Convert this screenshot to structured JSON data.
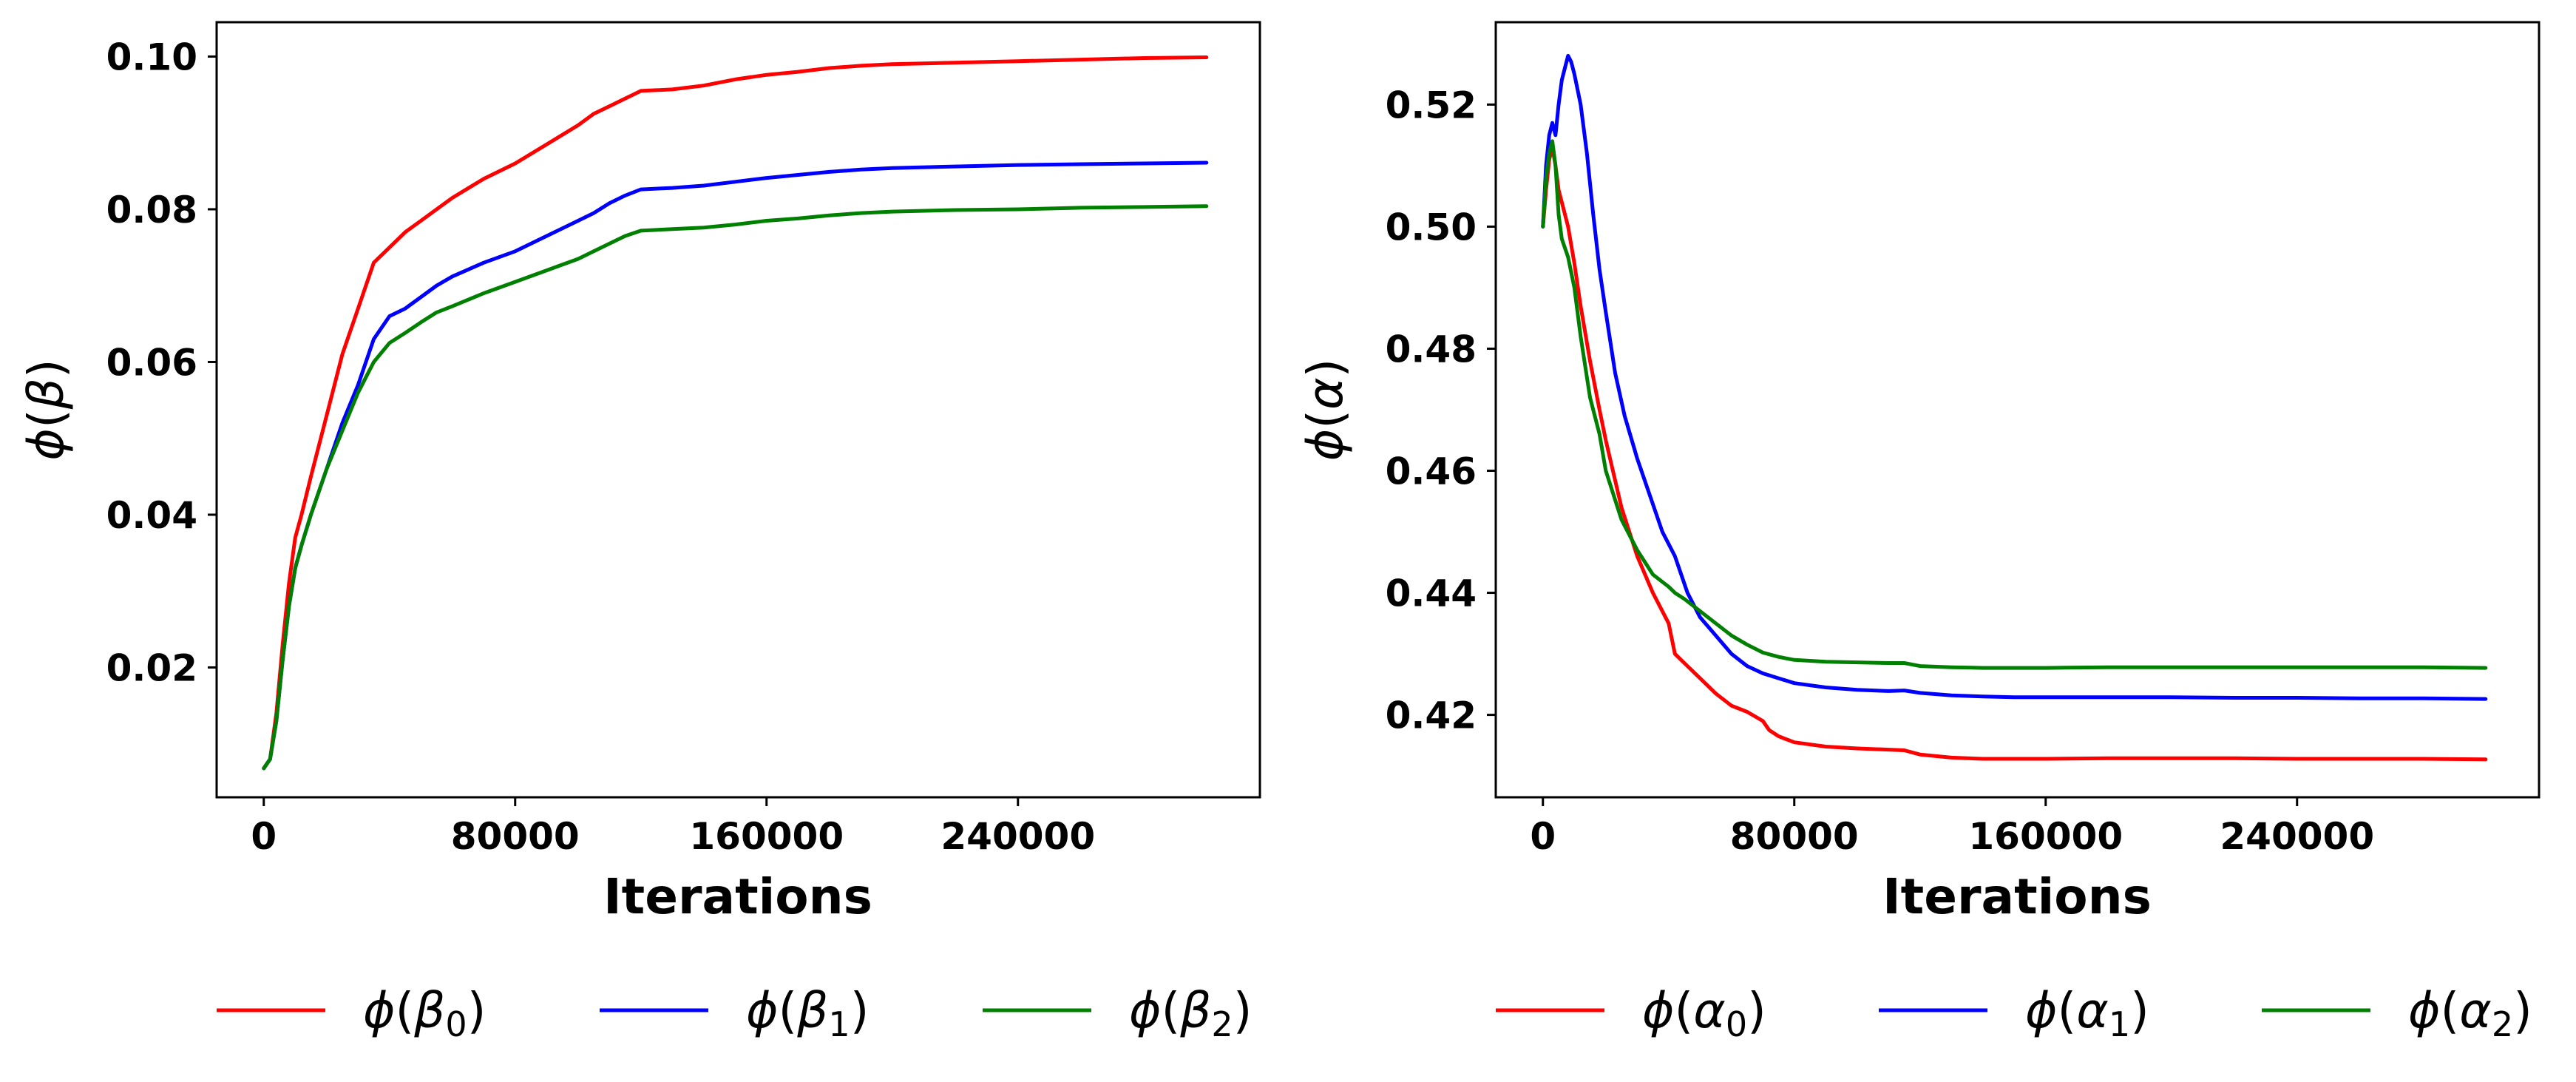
{
  "chart_data": [
    {
      "type": "line",
      "xlabel": "Iterations",
      "ylabel": "ϕ(β)",
      "ylabel_symbol": "β",
      "xlim": [
        -15000,
        317000
      ],
      "ylim": [
        0.003,
        0.1045
      ],
      "xticks": [
        0,
        80000,
        160000,
        240000
      ],
      "xtick_labels": [
        "0",
        "80000",
        "160000",
        "240000"
      ],
      "yticks": [
        0.02,
        0.04,
        0.06,
        0.08,
        0.1
      ],
      "ytick_labels": [
        "0.02",
        "0.04",
        "0.06",
        "0.08",
        "0.10"
      ],
      "series": [
        {
          "name": "ϕ(β0)",
          "symbol": "β",
          "sub": "0",
          "color": "#ff0000",
          "x": [
            0,
            2000,
            4000,
            6000,
            8000,
            10000,
            12000,
            15000,
            20000,
            25000,
            30000,
            35000,
            40000,
            45000,
            50000,
            55000,
            60000,
            70000,
            80000,
            90000,
            100000,
            105000,
            110000,
            115000,
            120000,
            130000,
            140000,
            150000,
            160000,
            170000,
            180000,
            190000,
            200000,
            220000,
            240000,
            260000,
            280000,
            300000
          ],
          "y": [
            0.0068,
            0.008,
            0.014,
            0.023,
            0.031,
            0.037,
            0.04,
            0.045,
            0.053,
            0.061,
            0.067,
            0.073,
            0.075,
            0.077,
            0.0785,
            0.08,
            0.0815,
            0.084,
            0.086,
            0.0885,
            0.091,
            0.0925,
            0.0935,
            0.0945,
            0.0955,
            0.0957,
            0.0962,
            0.097,
            0.0976,
            0.098,
            0.0985,
            0.0988,
            0.099,
            0.0992,
            0.0994,
            0.0996,
            0.0998,
            0.0999
          ]
        },
        {
          "name": "ϕ(β1)",
          "symbol": "β",
          "sub": "1",
          "color": "#0000ff",
          "x": [
            0,
            2000,
            4000,
            6000,
            8000,
            10000,
            12000,
            15000,
            20000,
            25000,
            30000,
            35000,
            40000,
            45000,
            50000,
            55000,
            60000,
            70000,
            80000,
            90000,
            100000,
            105000,
            110000,
            115000,
            120000,
            130000,
            140000,
            150000,
            160000,
            170000,
            180000,
            190000,
            200000,
            220000,
            240000,
            260000,
            280000,
            300000
          ],
          "y": [
            0.0068,
            0.008,
            0.013,
            0.021,
            0.028,
            0.033,
            0.036,
            0.04,
            0.046,
            0.052,
            0.057,
            0.063,
            0.066,
            0.067,
            0.0685,
            0.07,
            0.0712,
            0.073,
            0.0745,
            0.0765,
            0.0785,
            0.0795,
            0.0808,
            0.0818,
            0.0826,
            0.0828,
            0.0831,
            0.0836,
            0.0841,
            0.0845,
            0.0849,
            0.0852,
            0.0854,
            0.0856,
            0.0858,
            0.0859,
            0.086,
            0.0861
          ]
        },
        {
          "name": "ϕ(β2)",
          "symbol": "β",
          "sub": "2",
          "color": "#008000",
          "x": [
            0,
            2000,
            4000,
            6000,
            8000,
            10000,
            12000,
            15000,
            20000,
            25000,
            30000,
            35000,
            40000,
            45000,
            50000,
            55000,
            60000,
            70000,
            80000,
            90000,
            100000,
            105000,
            110000,
            115000,
            120000,
            130000,
            140000,
            150000,
            160000,
            170000,
            180000,
            190000,
            200000,
            220000,
            240000,
            260000,
            280000,
            300000
          ],
          "y": [
            0.0068,
            0.008,
            0.013,
            0.021,
            0.028,
            0.033,
            0.036,
            0.04,
            0.046,
            0.051,
            0.056,
            0.06,
            0.0625,
            0.0638,
            0.0652,
            0.0665,
            0.0673,
            0.069,
            0.0705,
            0.072,
            0.0735,
            0.0745,
            0.0755,
            0.0765,
            0.0772,
            0.0774,
            0.0776,
            0.078,
            0.0785,
            0.0788,
            0.0792,
            0.0795,
            0.0797,
            0.0799,
            0.08,
            0.0802,
            0.0803,
            0.0804
          ]
        }
      ]
    },
    {
      "type": "line",
      "xlabel": "Iterations",
      "ylabel": "ϕ(α)",
      "ylabel_symbol": "α",
      "xlim": [
        -15000,
        317000
      ],
      "ylim": [
        0.4065,
        0.5335
      ],
      "xticks": [
        0,
        80000,
        160000,
        240000
      ],
      "xtick_labels": [
        "0",
        "80000",
        "160000",
        "240000"
      ],
      "yticks": [
        0.42,
        0.44,
        0.46,
        0.48,
        0.5,
        0.52
      ],
      "ytick_labels": [
        "0.42",
        "0.44",
        "0.46",
        "0.48",
        "0.50",
        "0.52"
      ],
      "series": [
        {
          "name": "ϕ(α0)",
          "symbol": "α",
          "sub": "0",
          "color": "#ff0000",
          "x": [
            0,
            1000,
            2000,
            3000,
            4000,
            5000,
            6000,
            8000,
            10000,
            12000,
            15000,
            18000,
            20000,
            25000,
            30000,
            35000,
            40000,
            42000,
            45000,
            50000,
            55000,
            60000,
            65000,
            70000,
            72000,
            75000,
            80000,
            90000,
            100000,
            110000,
            115000,
            120000,
            130000,
            140000,
            150000,
            160000,
            180000,
            200000,
            220000,
            240000,
            260000,
            280000,
            300000
          ],
          "y": [
            0.5,
            0.506,
            0.511,
            0.513,
            0.51,
            0.506,
            0.504,
            0.5,
            0.494,
            0.487,
            0.478,
            0.47,
            0.465,
            0.454,
            0.446,
            0.44,
            0.435,
            0.43,
            0.4285,
            0.426,
            0.4235,
            0.4215,
            0.4205,
            0.419,
            0.4175,
            0.4165,
            0.4155,
            0.4148,
            0.4145,
            0.4143,
            0.4142,
            0.4135,
            0.413,
            0.4128,
            0.4128,
            0.4128,
            0.4129,
            0.4129,
            0.4129,
            0.4128,
            0.4128,
            0.4128,
            0.4127
          ]
        },
        {
          "name": "ϕ(α1)",
          "symbol": "α",
          "sub": "1",
          "color": "#0000ff",
          "x": [
            0,
            1000,
            2000,
            3000,
            4000,
            5000,
            6000,
            7000,
            8000,
            9000,
            10000,
            12000,
            14000,
            16000,
            18000,
            20000,
            23000,
            26000,
            30000,
            34000,
            38000,
            42000,
            46000,
            50000,
            55000,
            60000,
            65000,
            70000,
            75000,
            80000,
            90000,
            100000,
            110000,
            115000,
            120000,
            130000,
            140000,
            150000,
            160000,
            180000,
            200000,
            220000,
            240000,
            260000,
            280000,
            300000
          ],
          "y": [
            0.5,
            0.51,
            0.515,
            0.517,
            0.515,
            0.52,
            0.524,
            0.526,
            0.528,
            0.527,
            0.525,
            0.52,
            0.512,
            0.502,
            0.493,
            0.486,
            0.476,
            0.469,
            0.462,
            0.456,
            0.45,
            0.446,
            0.44,
            0.436,
            0.433,
            0.43,
            0.428,
            0.4268,
            0.426,
            0.4252,
            0.4245,
            0.4241,
            0.4239,
            0.424,
            0.4236,
            0.4232,
            0.423,
            0.4229,
            0.4229,
            0.4229,
            0.4229,
            0.4228,
            0.4228,
            0.4227,
            0.4227,
            0.4226
          ]
        },
        {
          "name": "ϕ(α2)",
          "symbol": "α",
          "sub": "2",
          "color": "#008000",
          "x": [
            0,
            1000,
            2000,
            3000,
            4000,
            5000,
            6000,
            8000,
            10000,
            12000,
            15000,
            18000,
            20000,
            25000,
            30000,
            35000,
            40000,
            42000,
            45000,
            50000,
            55000,
            60000,
            65000,
            70000,
            75000,
            80000,
            90000,
            100000,
            110000,
            115000,
            120000,
            130000,
            140000,
            150000,
            160000,
            180000,
            200000,
            220000,
            240000,
            260000,
            280000,
            300000
          ],
          "y": [
            0.5,
            0.508,
            0.512,
            0.514,
            0.51,
            0.502,
            0.498,
            0.495,
            0.49,
            0.482,
            0.472,
            0.466,
            0.46,
            0.452,
            0.447,
            0.443,
            0.441,
            0.44,
            0.439,
            0.437,
            0.435,
            0.433,
            0.4315,
            0.4302,
            0.4295,
            0.429,
            0.4287,
            0.4286,
            0.4285,
            0.4285,
            0.428,
            0.4278,
            0.4277,
            0.4277,
            0.4277,
            0.4278,
            0.4278,
            0.4278,
            0.4278,
            0.4278,
            0.4278,
            0.4277
          ]
        }
      ]
    }
  ]
}
